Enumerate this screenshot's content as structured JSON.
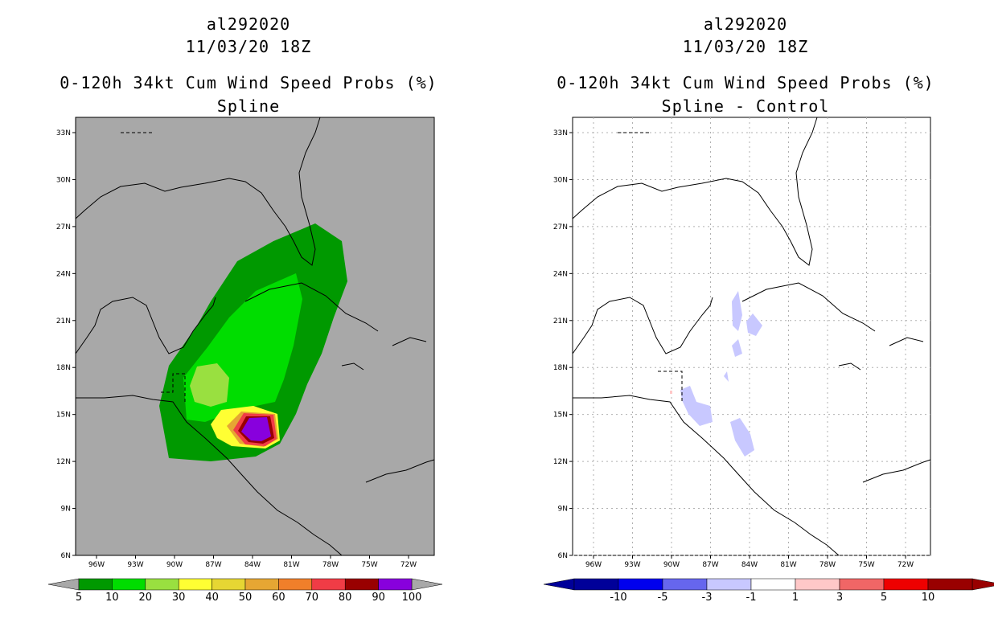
{
  "panels": [
    {
      "storm_id": "al292020",
      "datetime": "11/03/20 18Z",
      "product": "0-120h 34kt Cum Wind Speed Probs (%)",
      "subtitle": "Spline",
      "background_color": "#a8a8a8",
      "colorbar": {
        "labels": [
          "5",
          "10",
          "20",
          "30",
          "40",
          "50",
          "60",
          "70",
          "80",
          "90",
          "100"
        ],
        "colors": [
          "#009900",
          "#00dd00",
          "#99e040",
          "#ffff33",
          "#e6d633",
          "#e6a633",
          "#f07f2a",
          "#f03c46",
          "#990000",
          "#8800dd"
        ]
      }
    },
    {
      "storm_id": "al292020",
      "datetime": "11/03/20 18Z",
      "product": "0-120h 34kt Cum Wind Speed Probs (%)",
      "subtitle": "Spline - Control",
      "background_color": "#ffffff",
      "colorbar": {
        "labels": [
          "-10",
          "-5",
          "-3",
          "-1",
          "1",
          "3",
          "5",
          "10"
        ],
        "colors": [
          "#000099",
          "#0000ee",
          "#6666ee",
          "#c8c8ff",
          "#ffffff",
          "#ffc8c8",
          "#f06666",
          "#ee0000",
          "#990000"
        ]
      }
    }
  ],
  "axes": {
    "lat_labels": [
      "33N",
      "30N",
      "27N",
      "24N",
      "21N",
      "18N",
      "15N",
      "12N",
      "9N",
      "6N"
    ],
    "lon_labels": [
      "96W",
      "93W",
      "90W",
      "87W",
      "84W",
      "81W",
      "78W",
      "75W",
      "72W"
    ]
  }
}
